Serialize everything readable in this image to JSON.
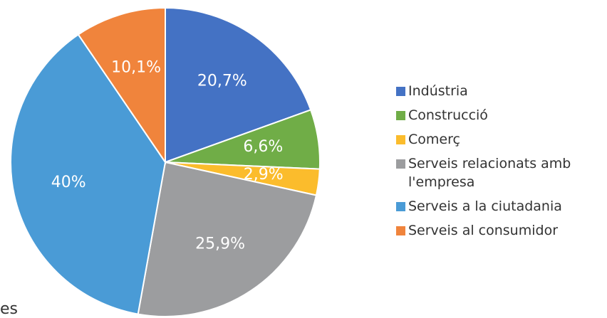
{
  "chart_data": {
    "type": "pie",
    "categories": [
      "Indústria",
      "Construcció",
      "Comerç",
      "Serveis relacionats amb l'empresa",
      "Serveis a la ciutadania",
      "Serveis al consumidor"
    ],
    "values": [
      20.7,
      6.6,
      2.9,
      25.9,
      40,
      10.1
    ],
    "value_labels": [
      "20,7%",
      "6,6%",
      "2,9%",
      "25,9%",
      "40%",
      "10,1%"
    ],
    "colors": [
      "#4472c4",
      "#70ad47",
      "#fbbc2c",
      "#9c9d9f",
      "#4a9bd6",
      "#f0843c"
    ],
    "legend": "right",
    "caption": "es"
  }
}
